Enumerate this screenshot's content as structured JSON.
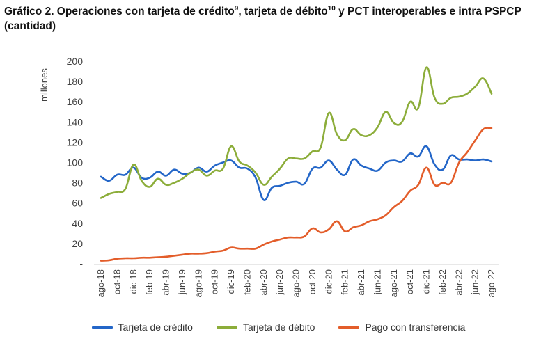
{
  "title": {
    "part1": "Gráfico 2. Operaciones con tarjeta de crédito",
    "sup1": "9",
    "part2": ", tarjeta de débito",
    "sup2": "10",
    "part3": " y PCT interoperables e intra PSPCP",
    "line2": "(cantidad)"
  },
  "colors": {
    "credito": "#2366c8",
    "debito": "#8cad3a",
    "transferencia": "#e35d2a"
  },
  "chart_data": {
    "type": "line",
    "ylabel": "millones",
    "ylim": [
      0,
      200
    ],
    "yticks": [
      "-",
      "20",
      "40",
      "60",
      "80",
      "100",
      "120",
      "140",
      "160",
      "180",
      "200"
    ],
    "xticks": [
      "ago-18",
      "oct-18",
      "dic-18",
      "feb-19",
      "abr-19",
      "jun-19",
      "ago-19",
      "oct-19",
      "dic-19",
      "feb-20",
      "abr-20",
      "jun-20",
      "ago-20",
      "oct-20",
      "dic-20",
      "feb-21",
      "abr-21",
      "jun-21",
      "ago-21",
      "oct-21",
      "dic-21",
      "feb-22",
      "abr-22",
      "jun-22",
      "ago-22"
    ],
    "x": [
      "ago-18",
      "sep-18",
      "oct-18",
      "nov-18",
      "dic-18",
      "ene-19",
      "feb-19",
      "mar-19",
      "abr-19",
      "may-19",
      "jun-19",
      "jul-19",
      "ago-19",
      "sep-19",
      "oct-19",
      "nov-19",
      "dic-19",
      "ene-20",
      "feb-20",
      "mar-20",
      "abr-20",
      "may-20",
      "jun-20",
      "jul-20",
      "ago-20",
      "sep-20",
      "oct-20",
      "nov-20",
      "dic-20",
      "ene-21",
      "feb-21",
      "mar-21",
      "abr-21",
      "may-21",
      "jun-21",
      "jul-21",
      "ago-21",
      "sep-21",
      "oct-21",
      "nov-21",
      "dic-21",
      "ene-22",
      "feb-22",
      "mar-22",
      "abr-22",
      "may-22",
      "jun-22",
      "jul-22",
      "ago-22"
    ],
    "grid": false,
    "legend_position": "bottom",
    "series": [
      {
        "name": "Tarjeta de crédito",
        "color_key": "credito",
        "values": [
          86,
          82,
          88,
          88,
          95,
          85,
          85,
          91,
          87,
          93,
          89,
          90,
          95,
          91,
          97,
          100,
          102,
          95,
          94,
          85,
          63,
          75,
          77,
          80,
          81,
          79,
          94,
          95,
          102,
          93,
          88,
          103,
          97,
          94,
          92,
          100,
          102,
          101,
          109,
          106,
          116,
          98,
          93,
          107,
          103,
          103,
          102,
          103,
          101
        ]
      },
      {
        "name": "Tarjeta de débito",
        "color_key": "debito",
        "values": [
          65,
          69,
          71,
          74,
          98,
          82,
          76,
          84,
          78,
          80,
          84,
          90,
          93,
          87,
          92,
          94,
          116,
          101,
          97,
          90,
          78,
          86,
          94,
          104,
          104,
          104,
          111,
          115,
          149,
          128,
          122,
          133,
          127,
          127,
          135,
          150,
          139,
          140,
          160,
          154,
          194,
          164,
          158,
          164,
          165,
          168,
          175,
          183,
          168
        ]
      },
      {
        "name": "Pago con transferencia",
        "color_key": "transferencia",
        "values": [
          3,
          3.5,
          5,
          5.5,
          5.5,
          6,
          6,
          6.5,
          7,
          8,
          9,
          10,
          10,
          10.5,
          12,
          13,
          16,
          15,
          15,
          15,
          19,
          22,
          24,
          26,
          26,
          27,
          35,
          31,
          34,
          42,
          32,
          36,
          38,
          42,
          44,
          48,
          56,
          62,
          72,
          78,
          95,
          78,
          80,
          80,
          100,
          110,
          122,
          133,
          134
        ]
      }
    ]
  }
}
